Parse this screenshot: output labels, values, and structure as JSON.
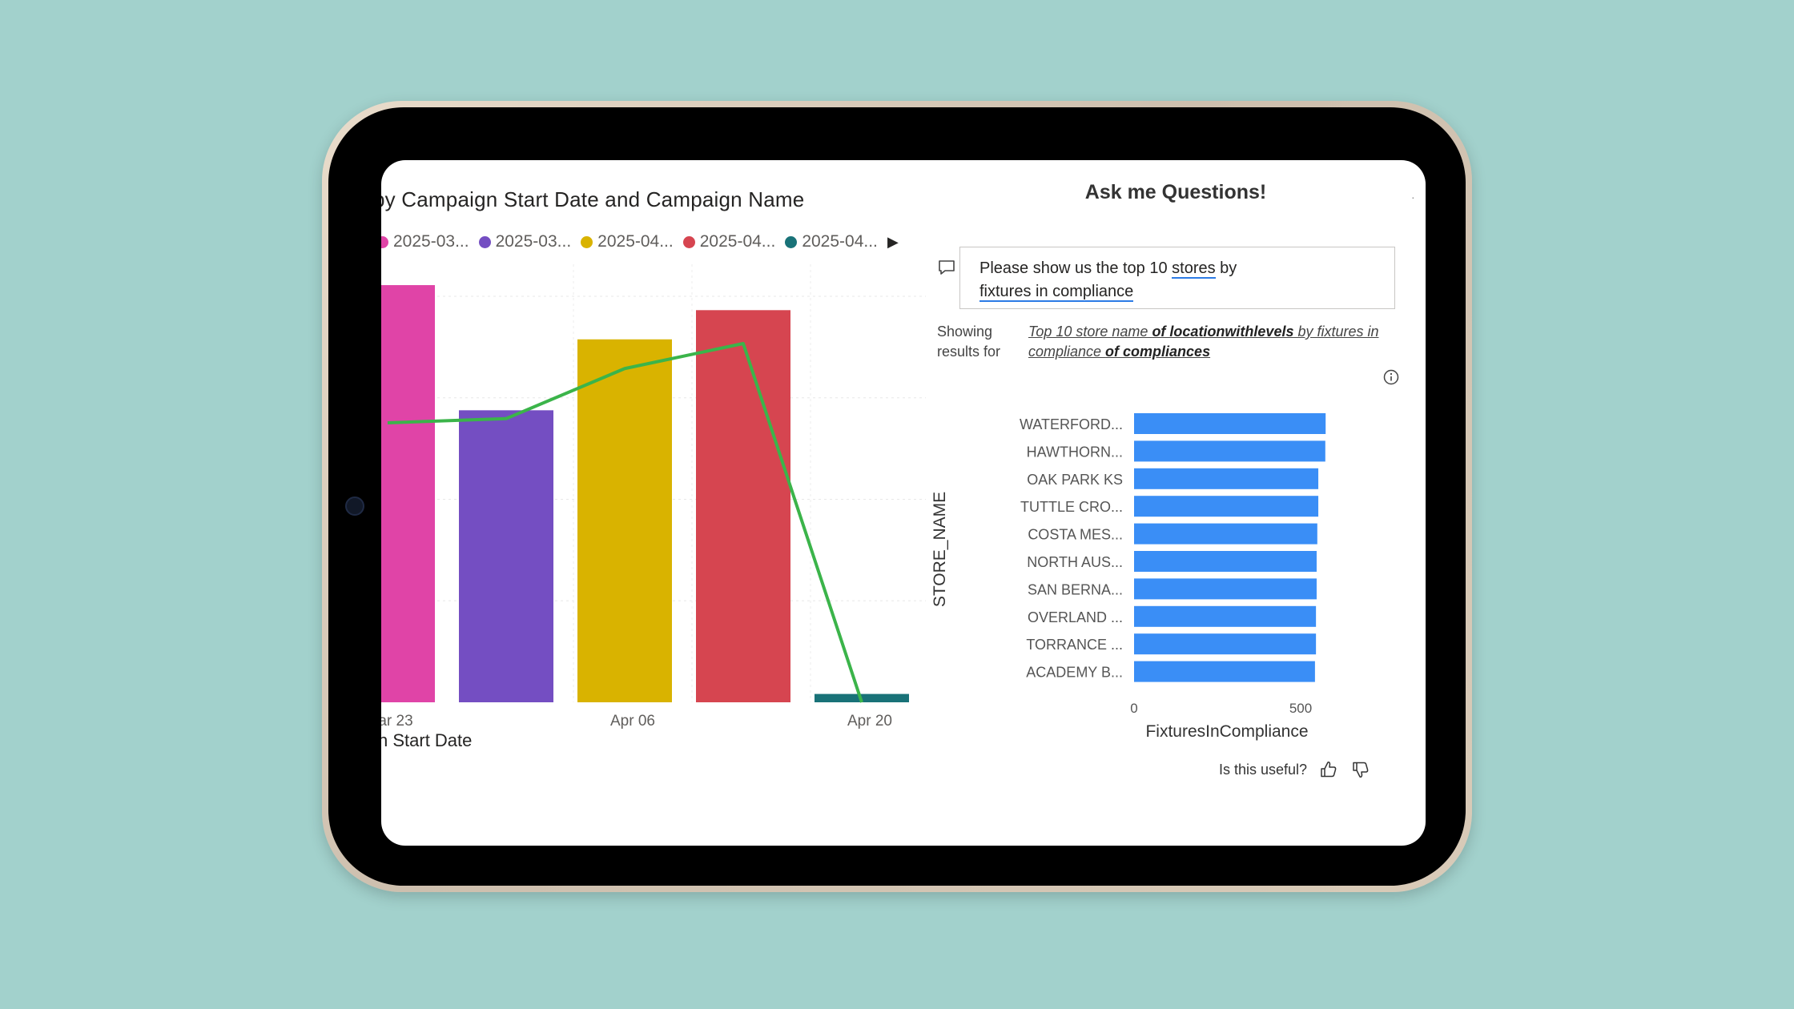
{
  "left_chart": {
    "title": "by Campaign Start Date and Campaign Name",
    "legend": [
      {
        "label": "2025-03...",
        "color": "#e044a7"
      },
      {
        "label": "2025-03...",
        "color": "#744ec2"
      },
      {
        "label": "2025-04...",
        "color": "#d9b300"
      },
      {
        "label": "2025-04...",
        "color": "#d64550"
      },
      {
        "label": "2025-04...",
        "color": "#197278"
      }
    ],
    "x_axis_title": "n Start Date",
    "x_ticks": [
      "ar 23",
      "Apr 06",
      "Apr 20"
    ],
    "line_color": "#3bb44a"
  },
  "qa": {
    "title": "Ask me Questions!",
    "question_part1": "Please show us the top 10 ",
    "question_stores": "stores",
    "question_part2": " by",
    "question_line2": "fixtures in compliance",
    "showing_line1": "Showing",
    "showing_line2": "results for",
    "restated_1": "Top 10 store name ",
    "restated_2": "of locationwithlevels",
    "restated_3": " by fixtures in compliance ",
    "restated_4": "of compliances",
    "useful_label": "Is this useful?",
    "bar_color": "#3a8ef6"
  },
  "chart_data": [
    {
      "type": "bar",
      "title": "by Campaign Start Date and Campaign Name",
      "xlabel": "n Start Date",
      "ylabel": "",
      "categories": [
        "ar 23",
        "",
        "Apr 06",
        "",
        "Apr 20"
      ],
      "series": [
        {
          "name": "2025-03...",
          "values": [
            100,
            null,
            null,
            null,
            null
          ],
          "color": "#e044a7"
        },
        {
          "name": "2025-03...",
          "values": [
            null,
            70,
            null,
            null,
            null
          ],
          "color": "#744ec2"
        },
        {
          "name": "2025-04...",
          "values": [
            null,
            null,
            87,
            null,
            null
          ],
          "color": "#d9b300"
        },
        {
          "name": "2025-04...",
          "values": [
            null,
            null,
            null,
            94,
            null
          ],
          "color": "#d64550"
        },
        {
          "name": "2025-04...",
          "values": [
            null,
            null,
            null,
            null,
            2
          ],
          "color": "#197278"
        }
      ],
      "line": {
        "values": [
          67,
          68,
          80,
          86,
          0
        ],
        "color": "#3bb44a"
      },
      "ylim": [
        0,
        105
      ],
      "grid": true,
      "legend": "top"
    },
    {
      "type": "bar",
      "orientation": "horizontal",
      "categories": [
        "WATERFORD...",
        "HAWTHORN...",
        "OAK PARK KS",
        "TUTTLE CRO...",
        "COSTA MES...",
        "NORTH AUS...",
        "SAN BERNA...",
        "OVERLAND ...",
        "TORRANCE ...",
        "ACADEMY B..."
      ],
      "values": [
        575,
        574,
        553,
        553,
        550,
        548,
        548,
        546,
        546,
        543
      ],
      "xlabel": "FixturesInCompliance",
      "ylabel": "STORE_NAME",
      "x_ticks": [
        "0",
        "500"
      ],
      "xlim": [
        0,
        620
      ],
      "grid": false,
      "legend": "none"
    }
  ]
}
